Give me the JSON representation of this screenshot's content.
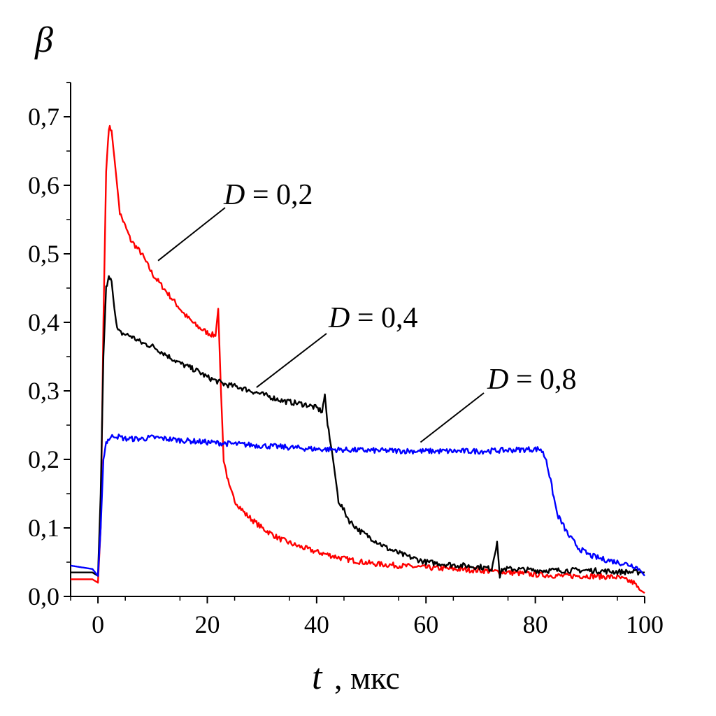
{
  "chart_data": {
    "type": "line",
    "title": "",
    "xlabel": {
      "symbol": "t",
      "unit": ", мкс"
    },
    "ylabel": {
      "symbol": "β"
    },
    "xlim": [
      -5,
      100
    ],
    "ylim": [
      0,
      0.75
    ],
    "xticks": [
      0,
      20,
      40,
      60,
      80,
      100
    ],
    "xtick_labels": [
      "0",
      "20",
      "40",
      "60",
      "80",
      "100"
    ],
    "yticks": [
      0.0,
      0.1,
      0.2,
      0.3,
      0.4,
      0.5,
      0.6,
      0.7
    ],
    "ytick_labels": [
      "0,0",
      "0,1",
      "0,2",
      "0,3",
      "0,4",
      "0,5",
      "0,6",
      "0,7"
    ],
    "grid": false,
    "series": [
      {
        "name": "D = 0,2",
        "label_var": "D",
        "label_value": " = 0,2",
        "color": "#ff0000",
        "x": [
          -5,
          -1,
          0,
          0.5,
          1,
          1.5,
          2,
          2.5,
          3,
          3.5,
          4,
          5,
          6,
          7,
          8,
          10,
          12,
          14,
          16,
          18,
          20,
          21.5,
          22,
          22.5,
          23,
          24,
          25,
          27,
          30,
          33,
          36,
          40,
          45,
          50,
          55,
          60,
          65,
          70,
          75,
          80,
          85,
          90,
          95,
          98,
          99,
          100
        ],
        "values": [
          0.025,
          0.025,
          0.02,
          0.1,
          0.4,
          0.62,
          0.685,
          0.68,
          0.64,
          0.6,
          0.56,
          0.54,
          0.52,
          0.51,
          0.5,
          0.47,
          0.45,
          0.43,
          0.41,
          0.395,
          0.385,
          0.38,
          0.42,
          0.3,
          0.2,
          0.16,
          0.14,
          0.12,
          0.1,
          0.085,
          0.075,
          0.065,
          0.055,
          0.048,
          0.045,
          0.042,
          0.04,
          0.038,
          0.035,
          0.032,
          0.03,
          0.03,
          0.028,
          0.02,
          0.01,
          0.005
        ],
        "label_points_to": [
          11,
          0.49
        ]
      },
      {
        "name": "D = 0,4",
        "label_var": "D",
        "label_value": " = 0,4",
        "color": "#000000",
        "x": [
          -5,
          -1,
          0,
          0.5,
          1,
          1.5,
          2,
          2.5,
          3,
          3.5,
          4,
          6,
          8,
          10,
          12,
          15,
          18,
          20,
          23,
          26,
          30,
          34,
          38,
          40,
          41,
          41.5,
          42,
          43,
          44,
          46,
          48,
          50,
          53,
          56,
          60,
          65,
          70,
          72,
          73,
          73.5,
          74,
          76,
          80,
          85,
          90,
          95,
          100
        ],
        "values": [
          0.035,
          0.035,
          0.03,
          0.15,
          0.35,
          0.45,
          0.47,
          0.46,
          0.42,
          0.39,
          0.385,
          0.38,
          0.37,
          0.365,
          0.355,
          0.34,
          0.33,
          0.32,
          0.31,
          0.305,
          0.295,
          0.285,
          0.28,
          0.275,
          0.27,
          0.295,
          0.25,
          0.2,
          0.14,
          0.11,
          0.095,
          0.085,
          0.07,
          0.06,
          0.05,
          0.046,
          0.043,
          0.04,
          0.08,
          0.03,
          0.04,
          0.04,
          0.038,
          0.038,
          0.038,
          0.036,
          0.035
        ],
        "label_points_to": [
          29,
          0.305
        ]
      },
      {
        "name": "D = 0,8",
        "label_var": "D",
        "label_value": " = 0,8",
        "color": "#0000ff",
        "x": [
          -5,
          -1,
          0,
          0.5,
          1,
          1.5,
          2,
          3,
          5,
          8,
          10,
          15,
          20,
          30,
          40,
          50,
          60,
          70,
          80,
          81,
          82,
          83,
          84,
          86,
          88,
          90,
          92,
          95,
          98,
          99,
          100
        ],
        "values": [
          0.045,
          0.04,
          0.03,
          0.1,
          0.2,
          0.225,
          0.23,
          0.235,
          0.23,
          0.23,
          0.232,
          0.228,
          0.225,
          0.22,
          0.215,
          0.213,
          0.212,
          0.212,
          0.215,
          0.215,
          0.2,
          0.16,
          0.12,
          0.09,
          0.07,
          0.06,
          0.055,
          0.05,
          0.045,
          0.04,
          0.03
        ],
        "label_points_to": [
          59,
          0.225
        ]
      }
    ]
  }
}
